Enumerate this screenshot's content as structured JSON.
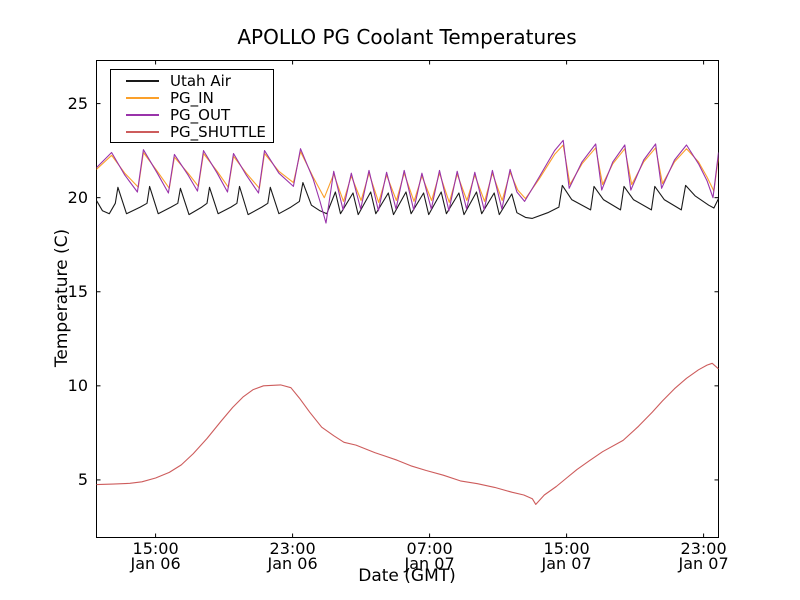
{
  "chart_data": {
    "type": "line",
    "title": "APOLLO PG Coolant Temperatures",
    "xlabel": "Date (GMT)",
    "ylabel": "Temperature (C)",
    "grid": false,
    "legend_position": "upper left",
    "x_unit": "hours since Jan 06 00:00 GMT",
    "xlim": [
      11.55,
      47.87
    ],
    "ylim": [
      1.94,
      27.29
    ],
    "x_ticks": [
      {
        "t": 15,
        "time": "15:00",
        "date": "Jan 06"
      },
      {
        "t": 23,
        "time": "23:00",
        "date": "Jan 06"
      },
      {
        "t": 31,
        "time": "07:00",
        "date": "Jan 07"
      },
      {
        "t": 39,
        "time": "15:00",
        "date": "Jan 07"
      },
      {
        "t": 47,
        "time": "23:00",
        "date": "Jan 07"
      }
    ],
    "y_ticks": [
      {
        "v": 5,
        "label": "5"
      },
      {
        "v": 10,
        "label": "10"
      },
      {
        "v": 15,
        "label": "15"
      },
      {
        "v": 20,
        "label": "20"
      },
      {
        "v": 25,
        "label": "25"
      }
    ],
    "series": [
      {
        "name": "Utah Air",
        "color": "#1a1a1a",
        "points": [
          [
            11.55,
            19.85
          ],
          [
            11.9,
            19.3
          ],
          [
            12.3,
            19.15
          ],
          [
            12.65,
            19.7
          ],
          [
            12.8,
            20.55
          ],
          [
            13.3,
            19.15
          ],
          [
            14.1,
            19.5
          ],
          [
            14.5,
            19.7
          ],
          [
            14.65,
            20.6
          ],
          [
            15.15,
            19.15
          ],
          [
            15.9,
            19.5
          ],
          [
            16.3,
            19.7
          ],
          [
            16.45,
            20.5
          ],
          [
            16.95,
            19.1
          ],
          [
            17.7,
            19.5
          ],
          [
            18.0,
            19.7
          ],
          [
            18.15,
            20.55
          ],
          [
            18.65,
            19.15
          ],
          [
            19.4,
            19.5
          ],
          [
            19.75,
            19.7
          ],
          [
            19.9,
            20.6
          ],
          [
            20.4,
            19.1
          ],
          [
            21.2,
            19.5
          ],
          [
            21.55,
            19.7
          ],
          [
            21.7,
            20.55
          ],
          [
            22.2,
            19.15
          ],
          [
            22.9,
            19.5
          ],
          [
            23.4,
            19.8
          ],
          [
            23.6,
            20.8
          ],
          [
            24.1,
            19.6
          ],
          [
            24.6,
            19.3
          ],
          [
            25.0,
            19.15
          ],
          [
            25.5,
            20.3
          ],
          [
            25.8,
            19.15
          ],
          [
            26.53,
            20.25
          ],
          [
            26.83,
            19.1
          ],
          [
            27.56,
            20.3
          ],
          [
            27.86,
            19.15
          ],
          [
            28.59,
            20.25
          ],
          [
            28.89,
            19.1
          ],
          [
            29.62,
            20.3
          ],
          [
            29.92,
            19.15
          ],
          [
            30.65,
            20.25
          ],
          [
            30.95,
            19.1
          ],
          [
            31.68,
            20.3
          ],
          [
            31.98,
            19.15
          ],
          [
            32.71,
            20.25
          ],
          [
            33.01,
            19.1
          ],
          [
            33.74,
            20.3
          ],
          [
            34.04,
            19.15
          ],
          [
            34.77,
            20.25
          ],
          [
            35.07,
            19.1
          ],
          [
            35.8,
            20.2
          ],
          [
            36.1,
            19.2
          ],
          [
            36.6,
            18.95
          ],
          [
            37.0,
            18.9
          ],
          [
            37.9,
            19.2
          ],
          [
            38.55,
            19.5
          ],
          [
            38.75,
            20.65
          ],
          [
            39.3,
            19.9
          ],
          [
            40.4,
            19.35
          ],
          [
            40.6,
            20.6
          ],
          [
            41.15,
            19.9
          ],
          [
            42.15,
            19.35
          ],
          [
            42.35,
            20.6
          ],
          [
            42.9,
            19.9
          ],
          [
            43.95,
            19.35
          ],
          [
            44.15,
            20.6
          ],
          [
            44.7,
            19.9
          ],
          [
            45.7,
            19.35
          ],
          [
            45.95,
            20.65
          ],
          [
            46.5,
            20.1
          ],
          [
            47.3,
            19.6
          ],
          [
            47.6,
            19.45
          ],
          [
            47.87,
            19.95
          ]
        ]
      },
      {
        "name": "PG_IN",
        "color": "#fba02a",
        "points": [
          [
            11.55,
            21.5
          ],
          [
            12.43,
            22.25
          ],
          [
            13.2,
            21.3
          ],
          [
            13.99,
            20.55
          ],
          [
            14.29,
            22.4
          ],
          [
            15.1,
            21.4
          ],
          [
            15.8,
            20.5
          ],
          [
            16.1,
            22.15
          ],
          [
            16.9,
            21.3
          ],
          [
            17.5,
            20.6
          ],
          [
            17.8,
            22.35
          ],
          [
            18.6,
            21.4
          ],
          [
            19.25,
            20.55
          ],
          [
            19.55,
            22.2
          ],
          [
            20.3,
            21.3
          ],
          [
            21.06,
            20.5
          ],
          [
            21.36,
            22.35
          ],
          [
            22.2,
            21.4
          ],
          [
            23.05,
            20.8
          ],
          [
            23.46,
            22.45
          ],
          [
            24.2,
            21.1
          ],
          [
            24.85,
            20.0
          ],
          [
            25.4,
            21.25
          ],
          [
            25.97,
            19.8
          ],
          [
            26.43,
            21.15
          ],
          [
            27.0,
            19.85
          ],
          [
            27.46,
            21.3
          ],
          [
            28.03,
            19.75
          ],
          [
            28.49,
            21.2
          ],
          [
            29.06,
            19.85
          ],
          [
            29.52,
            21.3
          ],
          [
            30.09,
            19.8
          ],
          [
            30.55,
            21.15
          ],
          [
            31.12,
            19.85
          ],
          [
            31.58,
            21.3
          ],
          [
            32.15,
            19.75
          ],
          [
            32.61,
            21.25
          ],
          [
            33.18,
            19.85
          ],
          [
            33.64,
            21.2
          ],
          [
            34.21,
            19.8
          ],
          [
            34.67,
            21.3
          ],
          [
            35.24,
            19.85
          ],
          [
            35.7,
            21.35
          ],
          [
            36.15,
            20.4
          ],
          [
            36.6,
            19.95
          ],
          [
            37.4,
            21.0
          ],
          [
            38.3,
            22.3
          ],
          [
            38.8,
            22.8
          ],
          [
            39.2,
            20.7
          ],
          [
            39.9,
            21.8
          ],
          [
            40.7,
            22.65
          ],
          [
            41.1,
            20.7
          ],
          [
            41.7,
            21.8
          ],
          [
            42.4,
            22.6
          ],
          [
            42.8,
            20.7
          ],
          [
            43.5,
            21.9
          ],
          [
            44.2,
            22.65
          ],
          [
            44.6,
            20.75
          ],
          [
            45.3,
            21.9
          ],
          [
            46.0,
            22.6
          ],
          [
            46.7,
            21.9
          ],
          [
            47.2,
            21.1
          ],
          [
            47.6,
            20.35
          ],
          [
            47.87,
            22.2
          ]
        ]
      },
      {
        "name": "PG_OUT",
        "color": "#9933aa",
        "points": [
          [
            11.55,
            21.6
          ],
          [
            12.43,
            22.4
          ],
          [
            13.2,
            21.2
          ],
          [
            13.94,
            20.3
          ],
          [
            14.29,
            22.55
          ],
          [
            15.1,
            21.3
          ],
          [
            15.75,
            20.25
          ],
          [
            16.1,
            22.3
          ],
          [
            16.9,
            21.2
          ],
          [
            17.45,
            20.35
          ],
          [
            17.8,
            22.5
          ],
          [
            18.6,
            21.3
          ],
          [
            19.2,
            20.3
          ],
          [
            19.55,
            22.35
          ],
          [
            20.3,
            21.2
          ],
          [
            21.01,
            20.25
          ],
          [
            21.36,
            22.5
          ],
          [
            22.2,
            21.3
          ],
          [
            23.05,
            20.6
          ],
          [
            23.46,
            22.6
          ],
          [
            24.2,
            21.0
          ],
          [
            24.6,
            19.8
          ],
          [
            24.95,
            18.65
          ],
          [
            25.4,
            21.4
          ],
          [
            25.95,
            19.35
          ],
          [
            26.43,
            21.3
          ],
          [
            26.98,
            19.4
          ],
          [
            27.46,
            21.45
          ],
          [
            28.01,
            19.3
          ],
          [
            28.49,
            21.35
          ],
          [
            29.04,
            19.4
          ],
          [
            29.52,
            21.45
          ],
          [
            30.07,
            19.35
          ],
          [
            30.55,
            21.3
          ],
          [
            31.1,
            19.4
          ],
          [
            31.58,
            21.45
          ],
          [
            32.13,
            19.3
          ],
          [
            32.61,
            21.4
          ],
          [
            33.16,
            19.4
          ],
          [
            33.64,
            21.35
          ],
          [
            34.19,
            19.35
          ],
          [
            34.67,
            21.45
          ],
          [
            35.22,
            19.4
          ],
          [
            35.7,
            21.5
          ],
          [
            36.1,
            20.3
          ],
          [
            36.55,
            19.8
          ],
          [
            37.4,
            21.1
          ],
          [
            38.3,
            22.5
          ],
          [
            38.8,
            23.05
          ],
          [
            39.15,
            20.5
          ],
          [
            39.9,
            21.9
          ],
          [
            40.7,
            22.85
          ],
          [
            41.05,
            20.4
          ],
          [
            41.7,
            21.9
          ],
          [
            42.4,
            22.8
          ],
          [
            42.75,
            20.4
          ],
          [
            43.5,
            22.0
          ],
          [
            44.2,
            22.85
          ],
          [
            44.55,
            20.5
          ],
          [
            45.3,
            22.0
          ],
          [
            46.0,
            22.8
          ],
          [
            46.7,
            21.8
          ],
          [
            47.2,
            20.9
          ],
          [
            47.55,
            20.0
          ],
          [
            47.87,
            22.4
          ]
        ]
      },
      {
        "name": "PG_SHUTTLE",
        "color": "#cd5c5c",
        "points": [
          [
            11.55,
            4.75
          ],
          [
            12.5,
            4.78
          ],
          [
            13.5,
            4.82
          ],
          [
            14.2,
            4.9
          ],
          [
            15.0,
            5.1
          ],
          [
            15.8,
            5.4
          ],
          [
            16.5,
            5.8
          ],
          [
            17.2,
            6.4
          ],
          [
            18.0,
            7.2
          ],
          [
            18.8,
            8.1
          ],
          [
            19.5,
            8.85
          ],
          [
            20.1,
            9.4
          ],
          [
            20.7,
            9.8
          ],
          [
            21.3,
            10.0
          ],
          [
            22.3,
            10.05
          ],
          [
            22.9,
            9.9
          ],
          [
            23.4,
            9.35
          ],
          [
            24.0,
            8.6
          ],
          [
            24.7,
            7.8
          ],
          [
            25.4,
            7.35
          ],
          [
            26.0,
            7.0
          ],
          [
            26.7,
            6.85
          ],
          [
            27.8,
            6.45
          ],
          [
            29.1,
            6.05
          ],
          [
            29.9,
            5.75
          ],
          [
            30.8,
            5.5
          ],
          [
            31.8,
            5.25
          ],
          [
            32.8,
            4.95
          ],
          [
            33.8,
            4.8
          ],
          [
            34.8,
            4.6
          ],
          [
            35.8,
            4.35
          ],
          [
            36.5,
            4.2
          ],
          [
            37.0,
            4.0
          ],
          [
            37.2,
            3.7
          ],
          [
            37.7,
            4.2
          ],
          [
            38.4,
            4.65
          ],
          [
            39.0,
            5.1
          ],
          [
            39.6,
            5.55
          ],
          [
            40.3,
            6.0
          ],
          [
            41.1,
            6.5
          ],
          [
            42.3,
            7.1
          ],
          [
            43.2,
            7.85
          ],
          [
            44.0,
            8.6
          ],
          [
            44.6,
            9.2
          ],
          [
            45.3,
            9.85
          ],
          [
            46.0,
            10.4
          ],
          [
            46.7,
            10.85
          ],
          [
            47.2,
            11.1
          ],
          [
            47.5,
            11.2
          ],
          [
            47.87,
            10.9
          ]
        ]
      }
    ]
  }
}
